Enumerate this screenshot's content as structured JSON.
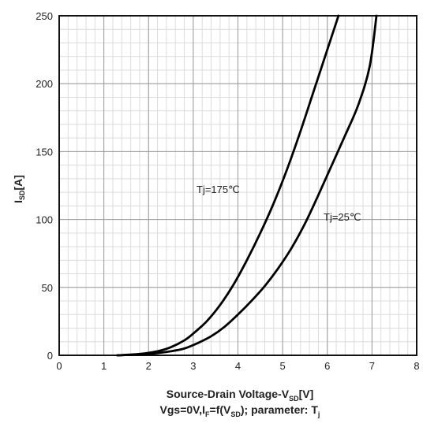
{
  "chart_data": {
    "type": "line",
    "xlabel": {
      "main": "Source-Drain Voltage-V",
      "sub": "SD",
      "unit": "[V]"
    },
    "subtitle": {
      "p1": "Vgs=0V,I",
      "s1": "F",
      "p2": "=f(V",
      "s2": "SD",
      "p3": "); parameter: T",
      "s3": "j"
    },
    "ylabel": {
      "main": "I",
      "sub": "SD",
      "unit": "[A]"
    },
    "xlim": [
      0,
      8
    ],
    "ylim": [
      0,
      250
    ],
    "xticks": [
      "0",
      "1",
      "2",
      "3",
      "4",
      "5",
      "6",
      "7",
      "8"
    ],
    "yticks": [
      "0",
      "50",
      "100",
      "150",
      "200",
      "250"
    ],
    "grid": {
      "major": true,
      "minor": true
    },
    "series": [
      {
        "name": "Tj=175℃",
        "x": [
          1.3,
          1.8,
          2.2,
          2.5,
          2.8,
          3.0,
          3.3,
          3.6,
          3.9,
          4.2,
          4.5,
          4.8,
          5.1,
          5.4,
          5.7,
          6.0,
          6.25
        ],
        "y": [
          0,
          1,
          3,
          6,
          11,
          16,
          25,
          37,
          52,
          70,
          90,
          112,
          137,
          165,
          195,
          225,
          250
        ]
      },
      {
        "name": "Tj=25℃",
        "x": [
          1.3,
          2.0,
          2.5,
          2.8,
          3.1,
          3.4,
          3.7,
          4.0,
          4.3,
          4.6,
          4.9,
          5.2,
          5.5,
          5.8,
          6.1,
          6.4,
          6.7,
          6.95,
          7.1
        ],
        "y": [
          0,
          1,
          3,
          5,
          9,
          14,
          21,
          30,
          40,
          51,
          64,
          79,
          97,
          118,
          140,
          162,
          185,
          213,
          250
        ]
      }
    ]
  }
}
